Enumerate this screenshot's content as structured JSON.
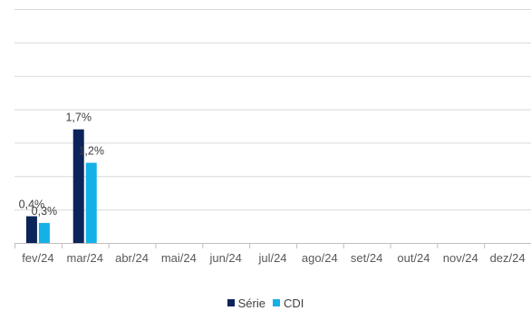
{
  "chart_data": {
    "type": "bar",
    "categories": [
      "fev/24",
      "mar/24",
      "abr/24",
      "mai/24",
      "jun/24",
      "jul/24",
      "ago/24",
      "set/24",
      "out/24",
      "nov/24",
      "dez/24"
    ],
    "series": [
      {
        "name": "Série",
        "color": "#0b2459",
        "values": [
          0.4,
          1.7,
          null,
          null,
          null,
          null,
          null,
          null,
          null,
          null,
          null
        ],
        "labels": [
          "0,4%",
          "1,7%",
          "",
          "",
          "",
          "",
          "",
          "",
          "",
          "",
          ""
        ]
      },
      {
        "name": "CDI",
        "color": "#14b1e7",
        "values": [
          0.3,
          1.2,
          null,
          null,
          null,
          null,
          null,
          null,
          null,
          null,
          null
        ],
        "labels": [
          "0,3%",
          "1,2%",
          "",
          "",
          "",
          "",
          "",
          "",
          "",
          "",
          ""
        ]
      }
    ],
    "ylim": [
      0,
      3.5
    ],
    "grid": true,
    "legend": "bottom-center"
  },
  "colors": {
    "grid": "#d9d9d9",
    "axis": "#bfbfbf"
  }
}
